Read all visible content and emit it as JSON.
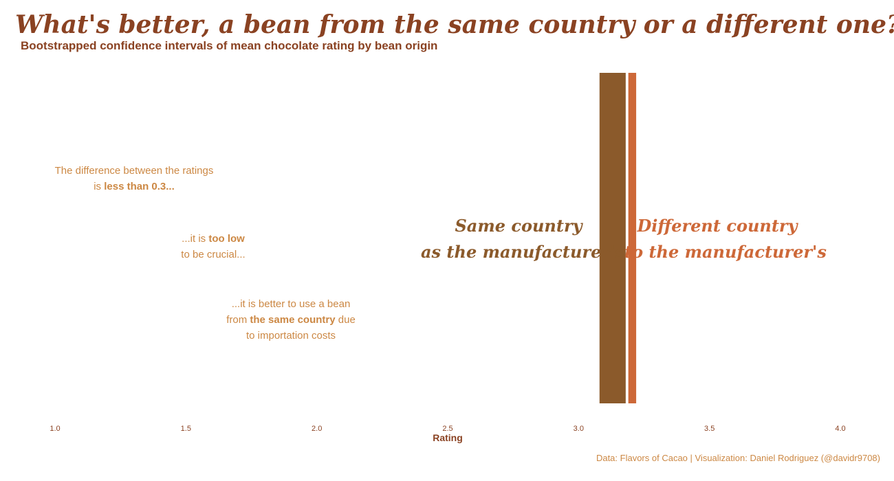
{
  "title": "What's better, a bean from the same country or a different one?",
  "subtitle": "Bootstrapped confidence intervals of mean chocolate rating by bean origin",
  "caption": "Data: Flavors of Cacao | Visualization: Daniel Rodriguez (@davidr9708)",
  "annotations": {
    "first": {
      "line1": "The difference between the ratings",
      "line2_pre": "is ",
      "line2_bold": "less than 0.3..."
    },
    "second": {
      "line1_pre": "...it is ",
      "line1_bold": "too low",
      "line2": "to be crucial..."
    },
    "third": {
      "line1": "...it is better to use a bean",
      "line2_pre": "from ",
      "line2_bold": "the same country",
      "line2_post": " due",
      "line3": "to importation costs"
    }
  },
  "colors": {
    "title": "#8a4222",
    "same": "#8b5a2b",
    "different": "#cd6838",
    "annotation": "#cc8844"
  },
  "chart_data": {
    "type": "bar",
    "orientation": "interval",
    "xlabel": "Rating",
    "ylabel": "",
    "xlim": [
      1.0,
      4.0
    ],
    "x_ticks": [
      1.0,
      1.5,
      2.0,
      2.5,
      3.0,
      3.5,
      4.0
    ],
    "x_tick_labels": [
      "1.0",
      "1.5",
      "2.0",
      "2.5",
      "3.0",
      "3.5",
      "4.0"
    ],
    "grid": false,
    "series": [
      {
        "name": "Same country\nas the manufacturer's",
        "label_lines": [
          "Same country",
          "as the manufacturer's"
        ],
        "low": 3.08,
        "high": 3.18,
        "color": "#8b5a2b"
      },
      {
        "name": "Different country\nto the manufacturer's",
        "label_lines": [
          "Different country",
          "to the manufacturer's"
        ],
        "low": 3.19,
        "high": 3.22,
        "color": "#cd6838"
      }
    ]
  }
}
